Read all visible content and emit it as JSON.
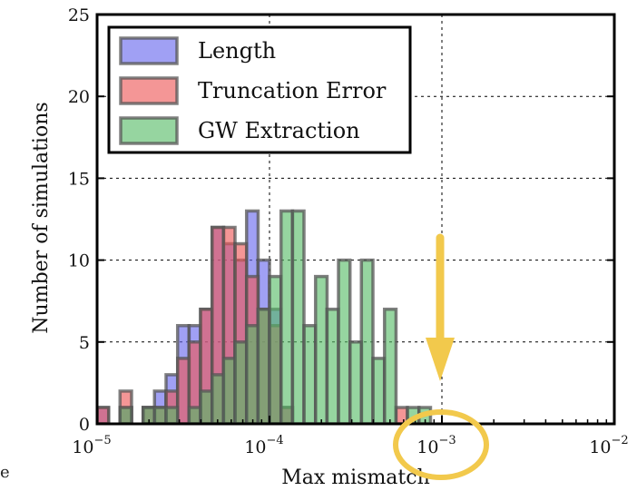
{
  "chart_data": {
    "type": "bar",
    "title": "",
    "xlabel": "Max mismatch",
    "ylabel": "Number of simulations",
    "xscale": "log",
    "xlim": [
      1e-05,
      0.01
    ],
    "ylim": [
      0,
      25
    ],
    "grid": true,
    "legend_position": "top-left",
    "x_tick_labels": [
      {
        "value": 1e-05,
        "mantissa": "10",
        "exp": "−5"
      },
      {
        "value": 0.0001,
        "mantissa": "10",
        "exp": "−4"
      },
      {
        "value": 0.001,
        "mantissa": "10",
        "exp": "−3"
      },
      {
        "value": 0.01,
        "mantissa": "10",
        "exp": "−2"
      }
    ],
    "y_ticks": [
      "0",
      "5",
      "10",
      "15",
      "20",
      "25"
    ],
    "bin_log_width": 0.067,
    "series": [
      {
        "name": "Length",
        "color": "#6666ee",
        "bin_start_log10": [
          -5.0,
          -4.867,
          -4.733,
          -4.667,
          -4.6,
          -4.533,
          -4.467,
          -4.4,
          -4.333,
          -4.267,
          -4.2,
          -4.133,
          -4.067,
          -4.0,
          -3.933
        ],
        "values": [
          1,
          1,
          1,
          2,
          3,
          6,
          6,
          7,
          12,
          11,
          10,
          13,
          10,
          7,
          1
        ]
      },
      {
        "name": "Truncation Error",
        "color": "#ee5555",
        "bin_start_log10": [
          -5.0,
          -4.867,
          -4.733,
          -4.667,
          -4.6,
          -4.533,
          -4.467,
          -4.4,
          -4.333,
          -4.267,
          -4.2,
          -4.133,
          -4.067,
          -4.0,
          -3.933,
          -3.267
        ],
        "values": [
          1,
          2,
          1,
          1,
          2,
          4,
          5,
          7,
          12,
          12,
          11,
          9,
          7,
          6,
          1,
          1
        ]
      },
      {
        "name": "GW Extraction",
        "color": "#55bb66",
        "bin_start_log10": [
          -4.867,
          -4.733,
          -4.667,
          -4.6,
          -4.467,
          -4.4,
          -4.333,
          -4.267,
          -4.2,
          -4.133,
          -4.067,
          -4.0,
          -3.933,
          -3.867,
          -3.8,
          -3.733,
          -3.667,
          -3.6,
          -3.533,
          -3.467,
          -3.4,
          -3.333,
          -3.2,
          -3.133
        ],
        "values": [
          1,
          1,
          1,
          1,
          1,
          2,
          3,
          4,
          5,
          6,
          7,
          9,
          13,
          13,
          6,
          9,
          7,
          10,
          5,
          10,
          4,
          7,
          1,
          1
        ]
      }
    ]
  },
  "annotations": {
    "arrow_color": "#f2c94c",
    "circle_color": "#f2c94c",
    "edge_fragment": "e"
  }
}
